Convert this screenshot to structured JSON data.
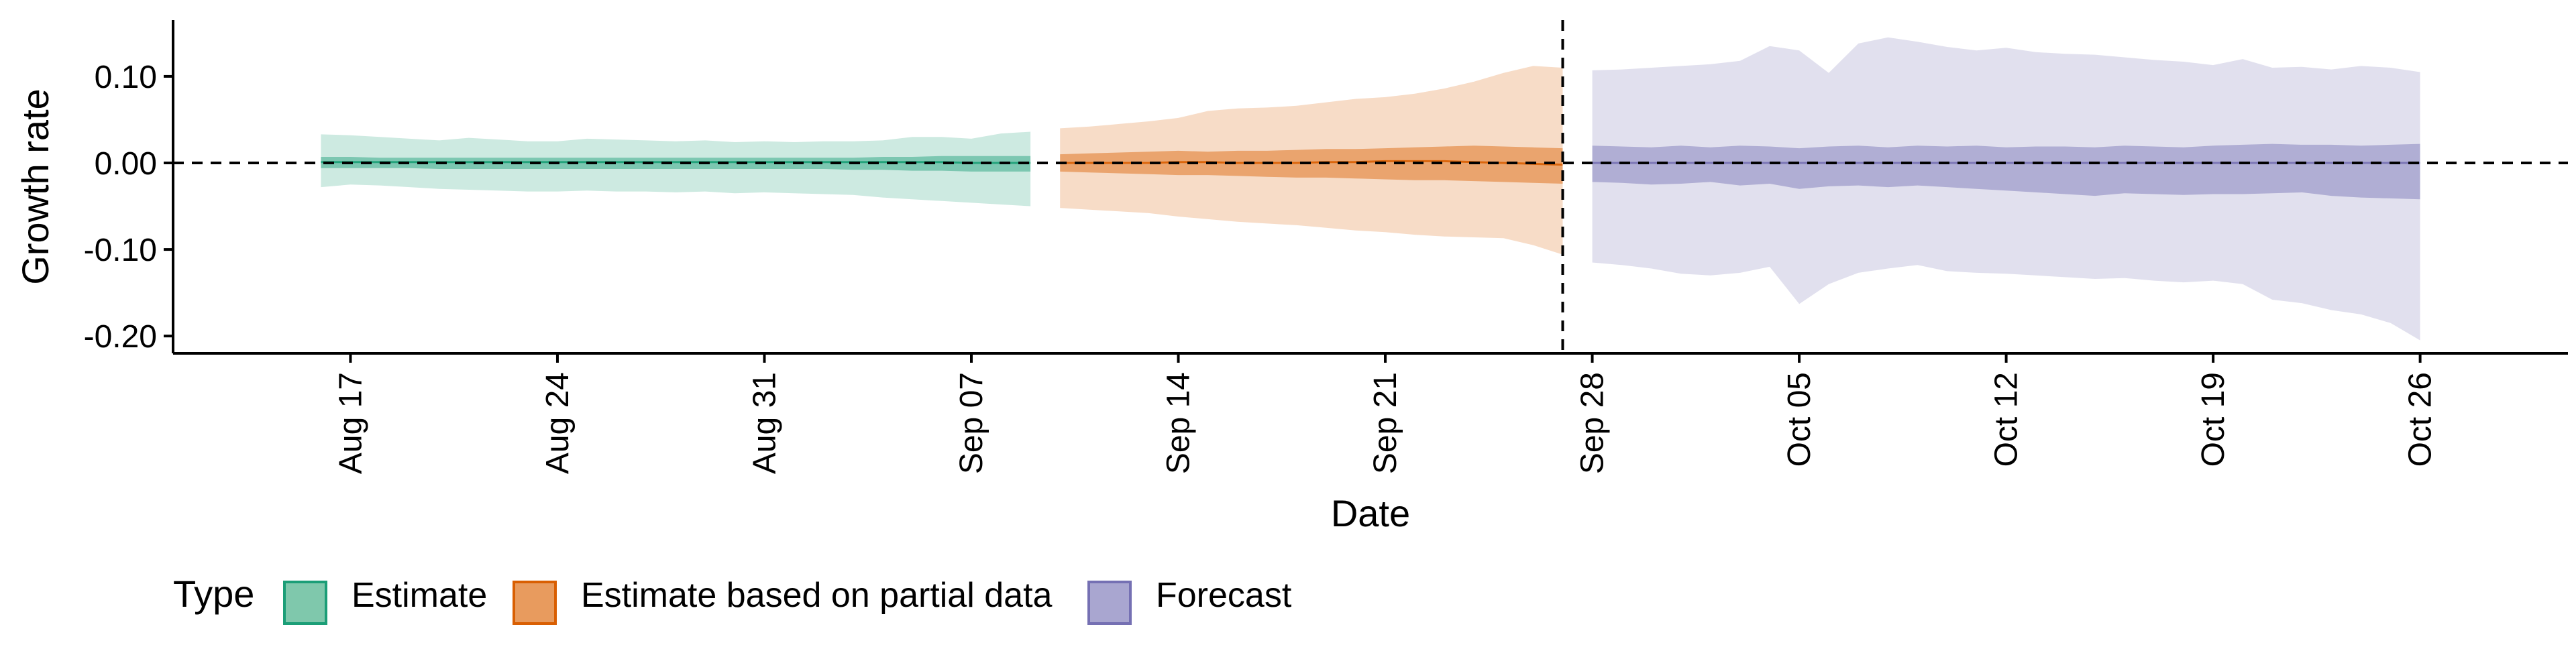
{
  "chart_data": {
    "type": "area",
    "title": "",
    "xlabel": "Date",
    "ylabel": "Growth rate",
    "x_axis": {
      "type": "date",
      "range": [
        "2020-08-11",
        "2020-10-31"
      ],
      "ticks": [
        "2020-08-17",
        "2020-08-24",
        "2020-08-31",
        "2020-09-07",
        "2020-09-14",
        "2020-09-21",
        "2020-09-28",
        "2020-10-05",
        "2020-10-12",
        "2020-10-19",
        "2020-10-26"
      ],
      "tick_labels": [
        "Aug 17",
        "Aug 24",
        "Aug 31",
        "Sep 07",
        "Sep 14",
        "Sep 21",
        "Sep 28",
        "Oct 05",
        "Oct 12",
        "Oct 19",
        "Oct 26"
      ]
    },
    "y_axis": {
      "range": [
        -0.22,
        0.165
      ],
      "ticks": [
        0.1,
        0.0,
        -0.1,
        -0.2
      ],
      "tick_labels": [
        "0.10",
        "0.00",
        "-0.10",
        "-0.20"
      ]
    },
    "grid": false,
    "reference_lines": [
      {
        "orientation": "horizontal",
        "y": 0.0,
        "style": "dashed"
      },
      {
        "orientation": "vertical",
        "x": "2020-09-27",
        "style": "dashed"
      }
    ],
    "legend": {
      "title": "Type",
      "position": "bottom-left",
      "entries": [
        {
          "label": "Estimate",
          "fill": "#7fc8ac",
          "stroke": "#1b9e77"
        },
        {
          "label": "Estimate based on partial data",
          "fill": "#e89b5e",
          "stroke": "#d95f02"
        },
        {
          "label": "Forecast",
          "fill": "#a9a6d0",
          "stroke": "#7570b3"
        }
      ]
    },
    "series": [
      {
        "name": "Estimate",
        "color": "#1b9e77",
        "start": "2020-08-16",
        "x": [
          "2020-08-16",
          "2020-08-17",
          "2020-08-18",
          "2020-08-19",
          "2020-08-20",
          "2020-08-21",
          "2020-08-22",
          "2020-08-23",
          "2020-08-24",
          "2020-08-25",
          "2020-08-26",
          "2020-08-27",
          "2020-08-28",
          "2020-08-29",
          "2020-08-30",
          "2020-08-31",
          "2020-09-01",
          "2020-09-02",
          "2020-09-03",
          "2020-09-04",
          "2020-09-05",
          "2020-09-06",
          "2020-09-07",
          "2020-09-08",
          "2020-09-09"
        ],
        "median": [
          0.001,
          0.001,
          0.001,
          0.001,
          0.001,
          0.001,
          0.001,
          0.001,
          0.001,
          0.001,
          0.001,
          0.001,
          0.001,
          0.001,
          0.001,
          0.001,
          0.001,
          0.001,
          0.001,
          0.001,
          0.001,
          0.001,
          0.0,
          0.0,
          0.0
        ],
        "inner_upper": [
          0.007,
          0.007,
          0.006,
          0.006,
          0.006,
          0.006,
          0.006,
          0.006,
          0.006,
          0.006,
          0.006,
          0.006,
          0.006,
          0.006,
          0.006,
          0.006,
          0.006,
          0.006,
          0.006,
          0.007,
          0.007,
          0.008,
          0.008,
          0.008,
          0.008
        ],
        "inner_lower": [
          -0.006,
          -0.006,
          -0.006,
          -0.006,
          -0.007,
          -0.007,
          -0.007,
          -0.007,
          -0.007,
          -0.007,
          -0.007,
          -0.007,
          -0.007,
          -0.007,
          -0.007,
          -0.007,
          -0.007,
          -0.007,
          -0.008,
          -0.008,
          -0.009,
          -0.009,
          -0.01,
          -0.01,
          -0.01
        ],
        "outer_upper": [
          0.033,
          0.032,
          0.03,
          0.028,
          0.026,
          0.029,
          0.027,
          0.025,
          0.025,
          0.028,
          0.027,
          0.026,
          0.025,
          0.026,
          0.024,
          0.025,
          0.024,
          0.025,
          0.025,
          0.026,
          0.03,
          0.03,
          0.028,
          0.034,
          0.036
        ],
        "outer_lower": [
          -0.028,
          -0.025,
          -0.026,
          -0.028,
          -0.03,
          -0.031,
          -0.032,
          -0.033,
          -0.033,
          -0.032,
          -0.033,
          -0.033,
          -0.034,
          -0.033,
          -0.035,
          -0.034,
          -0.035,
          -0.036,
          -0.037,
          -0.04,
          -0.042,
          -0.044,
          -0.046,
          -0.048,
          -0.05
        ]
      },
      {
        "name": "Estimate based on partial data",
        "color": "#d95f02",
        "x": [
          "2020-09-10",
          "2020-09-11",
          "2020-09-12",
          "2020-09-13",
          "2020-09-14",
          "2020-09-15",
          "2020-09-16",
          "2020-09-17",
          "2020-09-18",
          "2020-09-19",
          "2020-09-20",
          "2020-09-21",
          "2020-09-22",
          "2020-09-23",
          "2020-09-24",
          "2020-09-25",
          "2020-09-26",
          "2020-09-27"
        ],
        "median": [
          0.0,
          0.0,
          0.0,
          0.0,
          0.001,
          0.001,
          0.0,
          0.0,
          0.0,
          0.001,
          0.001,
          0.002,
          0.002,
          0.002,
          0.001,
          0.0,
          -0.001,
          -0.002
        ],
        "inner_upper": [
          0.01,
          0.011,
          0.012,
          0.013,
          0.014,
          0.013,
          0.014,
          0.014,
          0.015,
          0.016,
          0.016,
          0.017,
          0.018,
          0.019,
          0.02,
          0.019,
          0.018,
          0.017
        ],
        "inner_lower": [
          -0.01,
          -0.011,
          -0.012,
          -0.013,
          -0.014,
          -0.014,
          -0.015,
          -0.016,
          -0.017,
          -0.017,
          -0.018,
          -0.019,
          -0.02,
          -0.02,
          -0.021,
          -0.022,
          -0.023,
          -0.024
        ],
        "outer_upper": [
          0.04,
          0.042,
          0.045,
          0.048,
          0.052,
          0.06,
          0.063,
          0.064,
          0.066,
          0.07,
          0.074,
          0.076,
          0.08,
          0.086,
          0.094,
          0.104,
          0.112,
          0.11
        ],
        "outer_lower": [
          -0.052,
          -0.054,
          -0.056,
          -0.058,
          -0.062,
          -0.065,
          -0.068,
          -0.07,
          -0.072,
          -0.075,
          -0.078,
          -0.08,
          -0.083,
          -0.085,
          -0.086,
          -0.087,
          -0.095,
          -0.106
        ]
      },
      {
        "name": "Forecast",
        "color": "#7570b3",
        "x": [
          "2020-09-28",
          "2020-09-29",
          "2020-09-30",
          "2020-10-01",
          "2020-10-02",
          "2020-10-03",
          "2020-10-04",
          "2020-10-05",
          "2020-10-06",
          "2020-10-07",
          "2020-10-08",
          "2020-10-09",
          "2020-10-10",
          "2020-10-11",
          "2020-10-12",
          "2020-10-13",
          "2020-10-14",
          "2020-10-15",
          "2020-10-16",
          "2020-10-17",
          "2020-10-18",
          "2020-10-19",
          "2020-10-20",
          "2020-10-21",
          "2020-10-22",
          "2020-10-23",
          "2020-10-24",
          "2020-10-25",
          "2020-10-26"
        ],
        "median": [
          0.0,
          0.0,
          0.0,
          0.0,
          0.0,
          0.0,
          0.0,
          0.0,
          0.0,
          0.0,
          0.0,
          0.0,
          0.0,
          0.0,
          0.0,
          0.0,
          0.0,
          0.0,
          0.0,
          0.0,
          0.0,
          0.0,
          0.0,
          0.0,
          0.0,
          0.0,
          0.0,
          0.0,
          0.0
        ],
        "inner_upper": [
          0.02,
          0.019,
          0.018,
          0.02,
          0.018,
          0.02,
          0.019,
          0.017,
          0.019,
          0.02,
          0.018,
          0.02,
          0.019,
          0.02,
          0.018,
          0.019,
          0.019,
          0.018,
          0.02,
          0.019,
          0.018,
          0.02,
          0.021,
          0.022,
          0.021,
          0.021,
          0.02,
          0.021,
          0.022
        ],
        "inner_lower": [
          -0.022,
          -0.023,
          -0.025,
          -0.024,
          -0.022,
          -0.026,
          -0.024,
          -0.03,
          -0.027,
          -0.026,
          -0.028,
          -0.026,
          -0.028,
          -0.03,
          -0.032,
          -0.034,
          -0.036,
          -0.038,
          -0.035,
          -0.036,
          -0.037,
          -0.036,
          -0.036,
          -0.035,
          -0.034,
          -0.038,
          -0.04,
          -0.041,
          -0.042
        ],
        "outer_upper": [
          0.107,
          0.108,
          0.11,
          0.112,
          0.114,
          0.118,
          0.135,
          0.13,
          0.104,
          0.138,
          0.145,
          0.14,
          0.134,
          0.13,
          0.133,
          0.128,
          0.126,
          0.125,
          0.122,
          0.119,
          0.117,
          0.113,
          0.12,
          0.11,
          0.111,
          0.108,
          0.112,
          0.11,
          0.105
        ],
        "outer_lower": [
          -0.115,
          -0.118,
          -0.122,
          -0.128,
          -0.13,
          -0.127,
          -0.12,
          -0.163,
          -0.14,
          -0.127,
          -0.122,
          -0.118,
          -0.125,
          -0.127,
          -0.128,
          -0.13,
          -0.132,
          -0.134,
          -0.133,
          -0.136,
          -0.138,
          -0.136,
          -0.14,
          -0.158,
          -0.162,
          -0.17,
          -0.175,
          -0.185,
          -0.205
        ]
      }
    ]
  }
}
